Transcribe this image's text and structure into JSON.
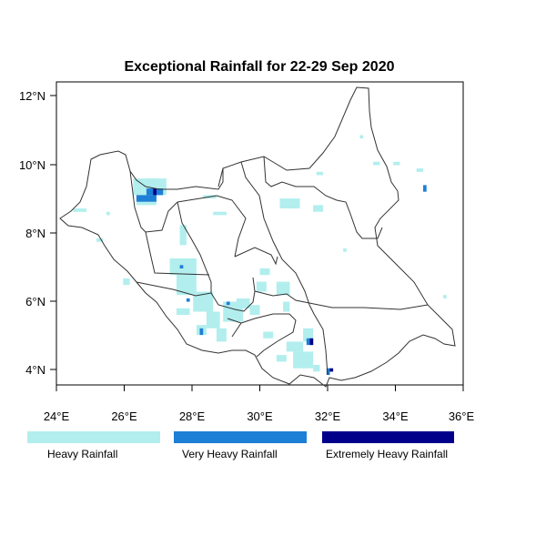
{
  "title": "Exceptional Rainfall for 22-29 Sep 2020",
  "axes": {
    "x_ticks": [
      "24°E",
      "26°E",
      "28°E",
      "30°E",
      "32°E",
      "34°E",
      "36°E"
    ],
    "y_ticks": [
      "12°N",
      "10°N",
      "8°N",
      "6°N",
      "4°N"
    ]
  },
  "legend": [
    {
      "label": "Heavy Rainfall",
      "color": "#b2eeee"
    },
    {
      "label": "Very Heavy Rainfall",
      "color": "#1e7fd6"
    },
    {
      "label": "Extremely Heavy Rainfall",
      "color": "#00008b"
    }
  ],
  "map_extent": {
    "lon": [
      23.9,
      36.1
    ],
    "lat": [
      3.3,
      12.4
    ]
  },
  "rainfall_cells": {
    "heavy": [
      [
        26.2,
        9.0,
        1.0,
        0.5
      ],
      [
        26.3,
        8.7,
        0.6,
        0.4
      ],
      [
        26.6,
        9.3,
        0.3,
        0.2
      ],
      [
        24.4,
        8.5,
        0.4,
        0.1
      ],
      [
        25.4,
        8.4,
        0.1,
        0.1
      ],
      [
        25.1,
        7.6,
        0.2,
        0.1
      ],
      [
        28.3,
        8.9,
        0.4,
        0.1
      ],
      [
        28.6,
        8.4,
        0.4,
        0.1
      ],
      [
        27.6,
        7.5,
        0.2,
        0.6
      ],
      [
        27.3,
        6.6,
        0.8,
        0.5
      ],
      [
        27.5,
        6.0,
        0.6,
        0.7
      ],
      [
        25.9,
        6.3,
        0.2,
        0.2
      ],
      [
        28.0,
        5.5,
        0.6,
        0.6
      ],
      [
        27.5,
        5.4,
        0.4,
        0.2
      ],
      [
        28.1,
        4.8,
        0.3,
        0.3
      ],
      [
        28.4,
        5.0,
        0.4,
        0.5
      ],
      [
        28.7,
        4.6,
        0.3,
        0.4
      ],
      [
        28.9,
        5.2,
        0.6,
        0.6
      ],
      [
        29.3,
        5.6,
        0.4,
        0.3
      ],
      [
        29.7,
        5.4,
        0.3,
        0.3
      ],
      [
        30.1,
        4.7,
        0.3,
        0.2
      ],
      [
        30.5,
        6.0,
        0.4,
        0.4
      ],
      [
        29.9,
        6.1,
        0.3,
        0.3
      ],
      [
        30.7,
        5.5,
        0.2,
        0.3
      ],
      [
        30.0,
        6.6,
        0.3,
        0.2
      ],
      [
        30.8,
        4.3,
        0.5,
        0.3
      ],
      [
        31.0,
        3.8,
        0.6,
        0.5
      ],
      [
        31.3,
        4.6,
        0.3,
        0.4
      ],
      [
        30.5,
        4.0,
        0.3,
        0.2
      ],
      [
        31.6,
        3.7,
        0.2,
        0.2
      ],
      [
        30.6,
        8.6,
        0.6,
        0.3
      ],
      [
        31.6,
        8.5,
        0.3,
        0.2
      ],
      [
        33.0,
        10.7,
        0.1,
        0.1
      ],
      [
        33.4,
        9.9,
        0.2,
        0.1
      ],
      [
        34.0,
        9.9,
        0.2,
        0.1
      ],
      [
        34.7,
        9.7,
        0.2,
        0.1
      ],
      [
        31.7,
        9.6,
        0.2,
        0.1
      ],
      [
        32.5,
        7.3,
        0.1,
        0.1
      ],
      [
        35.5,
        5.9,
        0.1,
        0.1
      ]
    ],
    "very_heavy": [
      [
        26.3,
        8.8,
        0.6,
        0.2
      ],
      [
        26.6,
        9.0,
        0.5,
        0.2
      ],
      [
        27.6,
        6.8,
        0.1,
        0.1
      ],
      [
        27.8,
        5.8,
        0.1,
        0.1
      ],
      [
        28.2,
        4.8,
        0.1,
        0.2
      ],
      [
        29.0,
        5.7,
        0.1,
        0.1
      ],
      [
        31.4,
        4.5,
        0.2,
        0.2
      ],
      [
        32.0,
        3.6,
        0.1,
        0.2
      ],
      [
        34.9,
        9.1,
        0.1,
        0.2
      ]
    ],
    "extreme": [
      [
        26.8,
        9.0,
        0.1,
        0.2
      ],
      [
        31.5,
        4.5,
        0.1,
        0.2
      ],
      [
        32.1,
        3.7,
        0.1,
        0.1
      ]
    ]
  }
}
